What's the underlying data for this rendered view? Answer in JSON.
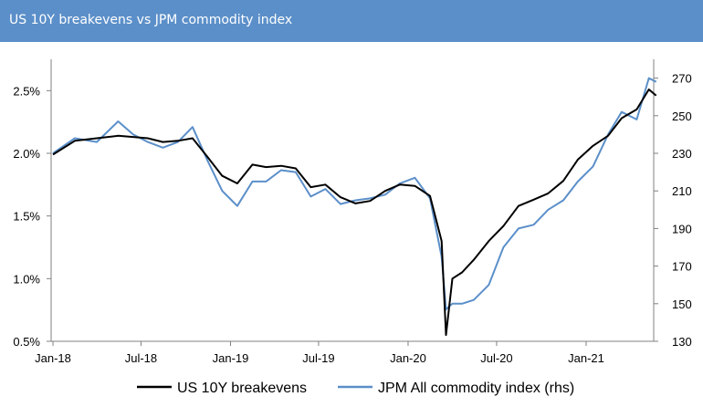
{
  "header": {
    "title": "US 10Y breakevens vs JPM commodity index"
  },
  "colors": {
    "title_bg": "#5b8fc9",
    "breakevens": "#000000",
    "commodity": "#5b8fc9"
  },
  "chart_data": {
    "type": "line",
    "title": "US 10Y breakevens vs JPM commodity index",
    "x_ticks": [
      "Jan-18",
      "Jul-18",
      "Jan-19",
      "Jul-19",
      "Jan-20",
      "Jul-20",
      "Jan-21"
    ],
    "y_left": {
      "ticks": [
        "0.5%",
        "1.0%",
        "1.5%",
        "2.0%",
        "2.5%"
      ],
      "range": [
        0.5,
        2.75
      ]
    },
    "y_right": {
      "ticks": [
        "130",
        "150",
        "170",
        "190",
        "210",
        "230",
        "250",
        "270"
      ],
      "range": [
        130,
        280
      ]
    },
    "legend": {
      "placement": "bottom"
    },
    "x": [
      "2018-01-01",
      "2018-02-15",
      "2018-04-01",
      "2018-05-15",
      "2018-06-15",
      "2018-07-15",
      "2018-08-15",
      "2018-09-15",
      "2018-10-15",
      "2018-11-15",
      "2018-12-15",
      "2019-01-15",
      "2019-02-15",
      "2019-03-15",
      "2019-04-15",
      "2019-05-15",
      "2019-06-15",
      "2019-07-15",
      "2019-08-15",
      "2019-09-15",
      "2019-10-15",
      "2019-11-15",
      "2019-12-15",
      "2020-01-15",
      "2020-02-15",
      "2020-03-10",
      "2020-03-19",
      "2020-04-01",
      "2020-04-21",
      "2020-05-15",
      "2020-06-15",
      "2020-07-15",
      "2020-08-15",
      "2020-09-15",
      "2020-10-15",
      "2020-11-15",
      "2020-12-15",
      "2021-01-15",
      "2021-02-15",
      "2021-03-15",
      "2021-04-15",
      "2021-05-10",
      "2021-05-25"
    ],
    "series": [
      {
        "name": "US 10Y breakevens",
        "axis": "left",
        "values": [
          1.99,
          2.1,
          2.12,
          2.14,
          2.13,
          2.12,
          2.09,
          2.1,
          2.12,
          1.97,
          1.82,
          1.76,
          1.91,
          1.89,
          1.9,
          1.88,
          1.73,
          1.75,
          1.65,
          1.6,
          1.62,
          1.7,
          1.75,
          1.74,
          1.66,
          1.3,
          0.55,
          1.0,
          1.05,
          1.15,
          1.3,
          1.42,
          1.58,
          1.63,
          1.68,
          1.78,
          1.95,
          2.06,
          2.14,
          2.28,
          2.35,
          2.51,
          2.46
        ]
      },
      {
        "name": "JPM All commodity index (rhs)",
        "axis": "right",
        "values": [
          230,
          238,
          236,
          247,
          240,
          236,
          233,
          236,
          244,
          226,
          210,
          202,
          215,
          215,
          221,
          220,
          207,
          211,
          203,
          205,
          206,
          208,
          214,
          217,
          206,
          175,
          147,
          150,
          150,
          152,
          160,
          180,
          190,
          192,
          200,
          205,
          215,
          223,
          240,
          252,
          248,
          270,
          268
        ]
      }
    ]
  }
}
